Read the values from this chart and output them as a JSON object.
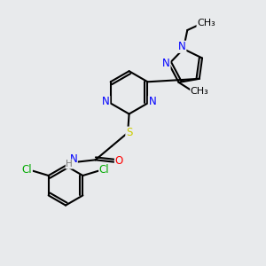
{
  "background_color": "#e8eaec",
  "bond_color": "#000000",
  "bond_width": 1.5,
  "atom_colors": {
    "N": "#0000ff",
    "O": "#ff0000",
    "S": "#cccc00",
    "Cl": "#00aa00",
    "C": "#000000",
    "H": "#777777"
  },
  "font_size": 8.5,
  "figsize": [
    3.0,
    3.0
  ],
  "dpi": 100
}
